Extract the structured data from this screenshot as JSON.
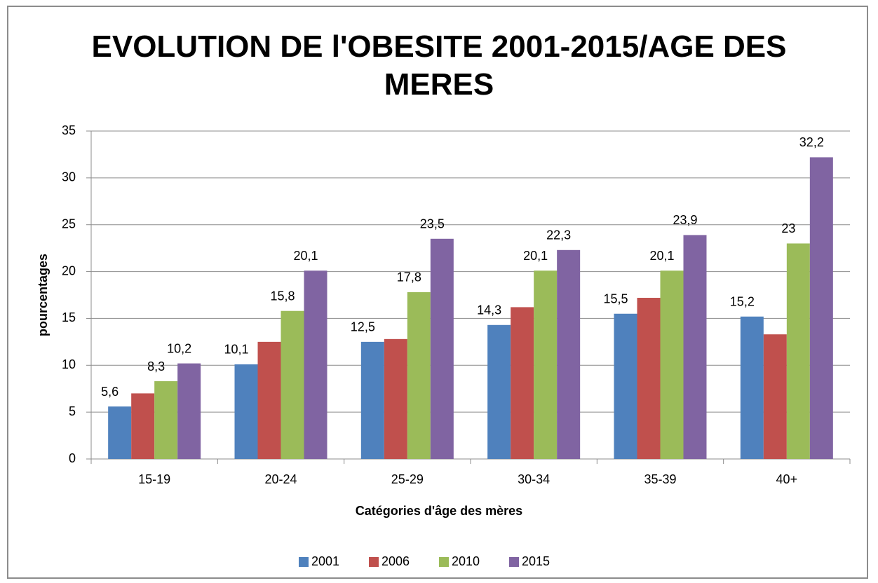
{
  "chart_data": {
    "type": "bar",
    "title": "EVOLUTION DE l'OBESITE 2001-2015/AGE DES MERES",
    "x_label": "Catégories d'âge des mères",
    "y_label": "pourcentages",
    "categories": [
      "15-19",
      "20-24",
      "25-29",
      "30-34",
      "35-39",
      "40+"
    ],
    "series": [
      {
        "name": "2001",
        "color": "#4f81bd",
        "values": [
          5.6,
          10.1,
          12.5,
          14.3,
          15.5,
          15.2
        ],
        "value_labels": [
          "5,6",
          "10,1",
          "12,5",
          "14,3",
          "15,5",
          "15,2"
        ]
      },
      {
        "name": "2006",
        "color": "#c0504d",
        "values": [
          7.0,
          12.5,
          12.8,
          16.2,
          17.2,
          13.3
        ]
      },
      {
        "name": "2010",
        "color": "#9bbb59",
        "values": [
          8.3,
          15.8,
          17.8,
          20.1,
          20.1,
          23
        ],
        "value_labels": [
          "8,3",
          "15,8",
          "17,8",
          "20,1",
          "20,1",
          "23"
        ]
      },
      {
        "name": "2015",
        "color": "#8064a2",
        "values": [
          10.2,
          20.1,
          23.5,
          22.3,
          23.9,
          32.2
        ],
        "value_labels": [
          "10,2",
          "20,1",
          "23,5",
          "22,3",
          "23,9",
          "32,2"
        ]
      }
    ],
    "ylim": [
      0,
      35
    ],
    "yticks": [
      0,
      5,
      10,
      15,
      20,
      25,
      30,
      35
    ],
    "grid": true,
    "legend": "bottom"
  }
}
